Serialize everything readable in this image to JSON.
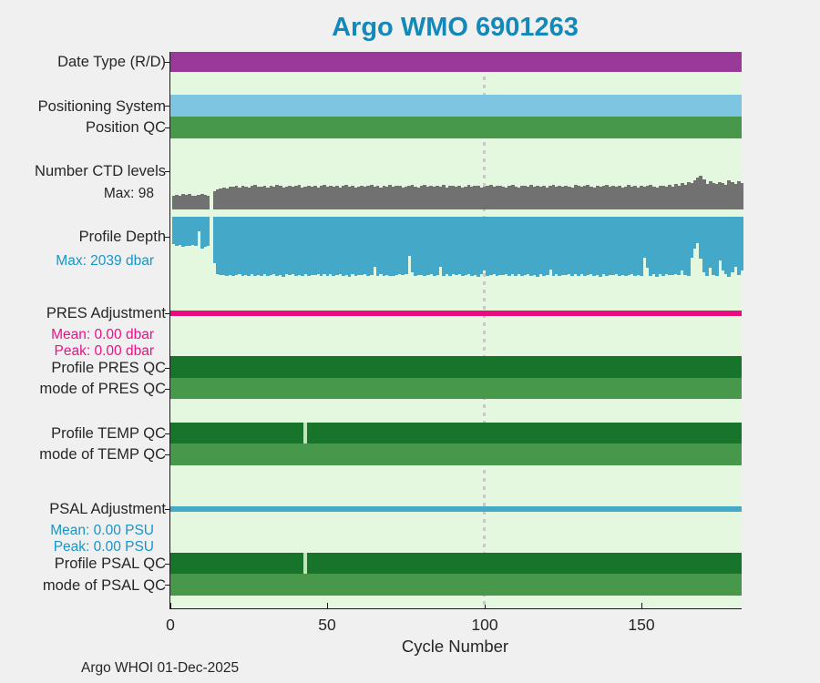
{
  "title": "Argo WMO 6901263",
  "footer": "Argo WHOI 01-Dec-2025",
  "colors": {
    "title_text": "#1289b9",
    "label_text": "#262626",
    "blue_text": "#1695c8",
    "magenta_text": "#ee0f8a",
    "figure_bg": "#f0f0f0",
    "plot_bg": "#e4f8df",
    "date_type": "#9a3a98",
    "positioning_system": "#7dc5e0",
    "qc_green": "#47984a",
    "ctd_gray": "#717171",
    "depth_blue": "#44a9c9",
    "pres_magenta": "#ea0b7f",
    "qc_dark_green": "#16752a",
    "psal_line_blue": "#45a9c8",
    "gridline": "#c9c9c9",
    "gap_fill": "#c2e4bc"
  },
  "chart_data": {
    "type": "bar",
    "title": "Argo WMO 6901263",
    "xlabel": "Cycle Number",
    "xlim": [
      0,
      182
    ],
    "x_ticks": [
      "0",
      "50",
      "100",
      "150"
    ],
    "x_tick_values": [
      0,
      50,
      100,
      150
    ],
    "gridline_x": 100,
    "grid": "single dotted vertical line at cycle 100",
    "legend_position": "none",
    "rows": [
      {
        "name": "Date Type (R/D)",
        "type": "status-band",
        "coverage": "all cycles",
        "color_key": "date_type"
      },
      {
        "name": "Positioning System",
        "type": "status-band",
        "coverage": "all cycles",
        "color_key": "positioning_system"
      },
      {
        "name": "Position QC",
        "type": "status-band",
        "coverage": "all cycles",
        "color_key": "qc_green"
      },
      {
        "name": "Number CTD levels",
        "type": "bar-up",
        "max_label": "Max: 98",
        "ylim": [
          0,
          98
        ],
        "color_key": "ctd_gray",
        "values": [
          40,
          43,
          41,
          44,
          42,
          45,
          41,
          39,
          43,
          46,
          42,
          40,
          0,
          52,
          58,
          62,
          64,
          61,
          65,
          67,
          68,
          64,
          70,
          66,
          63,
          69,
          71,
          65,
          67,
          70,
          64,
          68,
          66,
          72,
          69,
          63,
          67,
          70,
          65,
          68,
          71,
          64,
          67,
          69,
          66,
          70,
          63,
          68,
          72,
          65,
          69,
          67,
          70,
          64,
          68,
          71,
          66,
          69,
          63,
          67,
          70,
          65,
          68,
          72,
          66,
          69,
          64,
          70,
          67,
          71,
          65,
          68,
          70,
          63,
          66,
          69,
          72,
          67,
          64,
          68,
          71,
          66,
          69,
          65,
          70,
          67,
          72,
          64,
          68,
          70,
          66,
          69,
          63,
          67,
          71,
          65,
          68,
          70,
          64,
          67,
          69,
          72,
          65,
          68,
          70,
          66,
          63,
          69,
          71,
          67,
          64,
          70,
          68,
          65,
          72,
          66,
          69,
          67,
          70,
          64,
          68,
          71,
          65,
          69,
          66,
          70,
          67,
          63,
          72,
          68,
          65,
          69,
          71,
          66,
          64,
          70,
          67,
          68,
          72,
          65,
          69,
          66,
          70,
          64,
          67,
          71,
          65,
          68,
          63,
          70,
          66,
          69,
          72,
          67,
          64,
          68,
          70,
          65,
          71,
          66,
          75,
          70,
          78,
          72,
          80,
          76,
          85,
          92,
          98,
          88,
          75,
          82,
          78,
          73,
          80,
          76,
          72,
          84,
          79,
          75,
          81,
          77
        ]
      },
      {
        "name": "Profile Depth",
        "type": "bar-down",
        "max_label": "Max: 2039 dbar",
        "ylim": [
          0,
          2039
        ],
        "color_key": "depth_blue",
        "values": [
          950,
          1010,
          980,
          1020,
          990,
          1015,
          975,
          1000,
          520,
          1100,
          1030,
          995,
          0,
          1600,
          1950,
          2000,
          1980,
          2010,
          1995,
          2020,
          2000,
          1960,
          2025,
          1985,
          2010,
          1955,
          2030,
          1990,
          2015,
          1970,
          2035,
          1995,
          1965,
          2020,
          1980,
          2039,
          1960,
          2005,
          1975,
          2025,
          1990,
          2010,
          1955,
          2030,
          1985,
          2000,
          1965,
          2035,
          1975,
          2015,
          1950,
          2020,
          1995,
          1960,
          2030,
          1980,
          2039,
          1970,
          2010,
          1990,
          2000,
          1955,
          2025,
          1980,
          1700,
          2010,
          1965,
          2030,
          1990,
          2015,
          2035,
          1985,
          1960,
          2005,
          1975,
          1350,
          1900,
          2020,
          1980,
          2000,
          2025,
          1990,
          1955,
          2030,
          1985,
          1700,
          2010,
          1965,
          2035,
          1975,
          2000,
          1950,
          2020,
          1995,
          1960,
          2030,
          1980,
          2039,
          1970,
          1850,
          2010,
          1990,
          1955,
          2025,
          1985,
          2000,
          1965,
          2035,
          1975,
          2015,
          1950,
          2020,
          1995,
          1960,
          2030,
          1980,
          2039,
          1970,
          2010,
          1990,
          1800,
          2010,
          1955,
          2030,
          1985,
          2000,
          1965,
          2035,
          1975,
          2015,
          1950,
          2020,
          1995,
          1960,
          2030,
          1980,
          2039,
          1970,
          2010,
          1990,
          2000,
          1955,
          2025,
          1980,
          2010,
          1990,
          1965,
          2030,
          1985,
          2015,
          1400,
          1750,
          2035,
          1960,
          2039,
          1975,
          2020,
          1950,
          2000,
          1985,
          1950,
          2000,
          1840,
          1980,
          2010,
          1400,
          1100,
          900,
          1450,
          1900,
          2020,
          1750,
          1980,
          2010,
          1500,
          1850,
          1950,
          2039,
          1900,
          1700,
          1980,
          1850
        ]
      },
      {
        "name": "PRES Adjustment",
        "type": "value-line",
        "mean_label": "Mean: 0.00 dbar",
        "peak_label": "Peak: 0.00 dbar",
        "mean": 0.0,
        "peak": 0.0,
        "color_key": "pres_magenta"
      },
      {
        "name": "Profile PRES QC",
        "type": "status-band",
        "gap_cycles": [],
        "color_key": "qc_dark_green"
      },
      {
        "name": "mode of PRES QC",
        "type": "status-band",
        "gap_cycles": [],
        "color_key": "qc_green"
      },
      {
        "name": "Profile TEMP QC",
        "type": "status-band",
        "gap_cycles": [
          43
        ],
        "color_key": "qc_dark_green"
      },
      {
        "name": "mode of TEMP QC",
        "type": "status-band",
        "gap_cycles": [],
        "color_key": "qc_green"
      },
      {
        "name": "PSAL Adjustment",
        "type": "value-line",
        "mean_label": "Mean: 0.00 PSU",
        "peak_label": "Peak: 0.00 PSU",
        "mean": 0.0,
        "peak": 0.0,
        "color_key": "psal_line_blue"
      },
      {
        "name": "Profile PSAL QC",
        "type": "status-band",
        "gap_cycles": [
          43
        ],
        "color_key": "qc_dark_green"
      },
      {
        "name": "mode of PSAL QC",
        "type": "status-band",
        "gap_cycles": [],
        "color_key": "qc_green"
      }
    ]
  }
}
